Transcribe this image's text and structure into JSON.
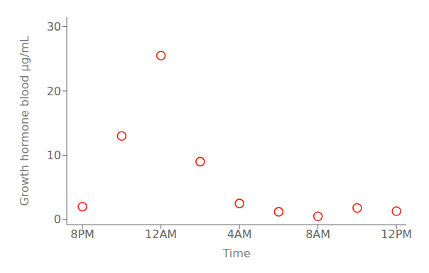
{
  "chart_data": {
    "type": "scatter",
    "x": [
      0,
      2,
      4,
      6,
      8,
      10,
      12,
      14,
      16
    ],
    "values": [
      2.0,
      13.0,
      25.5,
      9.0,
      2.5,
      1.2,
      0.5,
      1.8,
      1.3
    ],
    "xlabel": "Time",
    "ylabel": "Growth hormone blood µg/mL",
    "xlim": [
      -0.8,
      16.5
    ],
    "ylim": [
      -0.8,
      31.5
    ],
    "xticks": [
      {
        "value": 0,
        "label": "8PM"
      },
      {
        "value": 4,
        "label": "12AM"
      },
      {
        "value": 8,
        "label": "4AM"
      },
      {
        "value": 12,
        "label": "8AM"
      },
      {
        "value": 16,
        "label": "12PM"
      }
    ],
    "yticks": [
      0,
      10,
      20,
      30
    ],
    "color": "#EE2211",
    "marker": "circle"
  }
}
